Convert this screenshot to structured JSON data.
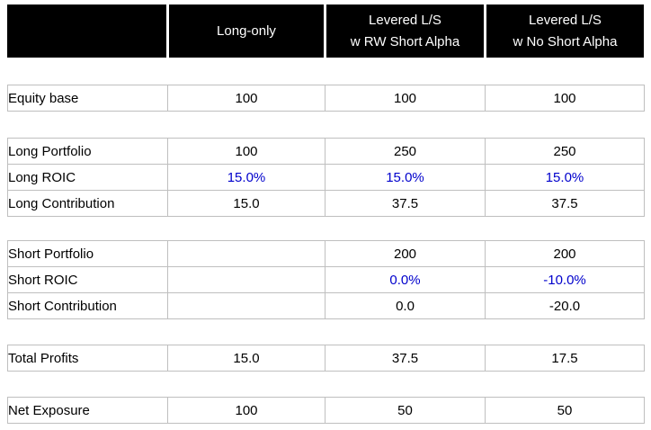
{
  "colors": {
    "header_bg": "#000000",
    "header_fg": "#ffffff",
    "cell_border": "#bfbfbf",
    "value_text": "#000000",
    "percent_text": "#0000cc",
    "background": "#ffffff"
  },
  "header": {
    "columns": [
      {
        "line1": "",
        "line2": ""
      },
      {
        "line1": "Long-only",
        "line2": ""
      },
      {
        "line1": "Levered L/S",
        "line2": "w RW Short Alpha"
      },
      {
        "line1": "Levered L/S",
        "line2": "w No Short Alpha"
      }
    ]
  },
  "rows": [
    {
      "label": "Equity base",
      "values": [
        "100",
        "100",
        "100"
      ]
    },
    {
      "label": "Long Portfolio",
      "values": [
        "100",
        "250",
        "250"
      ]
    },
    {
      "label": "Long ROIC",
      "values": [
        "15.0%",
        "15.0%",
        "15.0%"
      ]
    },
    {
      "label": "Long Contribution",
      "values": [
        "15.0",
        "37.5",
        "37.5"
      ]
    },
    {
      "label": "Short Portfolio",
      "values": [
        "",
        "200",
        "200"
      ]
    },
    {
      "label": "Short ROIC",
      "values": [
        "",
        "0.0%",
        "-10.0%"
      ]
    },
    {
      "label": "Short Contribution",
      "values": [
        "",
        "0.0",
        "-20.0"
      ]
    },
    {
      "label": "Total Profits",
      "values": [
        "15.0",
        "37.5",
        "17.5"
      ]
    },
    {
      "label": "Net Exposure",
      "values": [
        "100",
        "50",
        "50"
      ]
    }
  ]
}
